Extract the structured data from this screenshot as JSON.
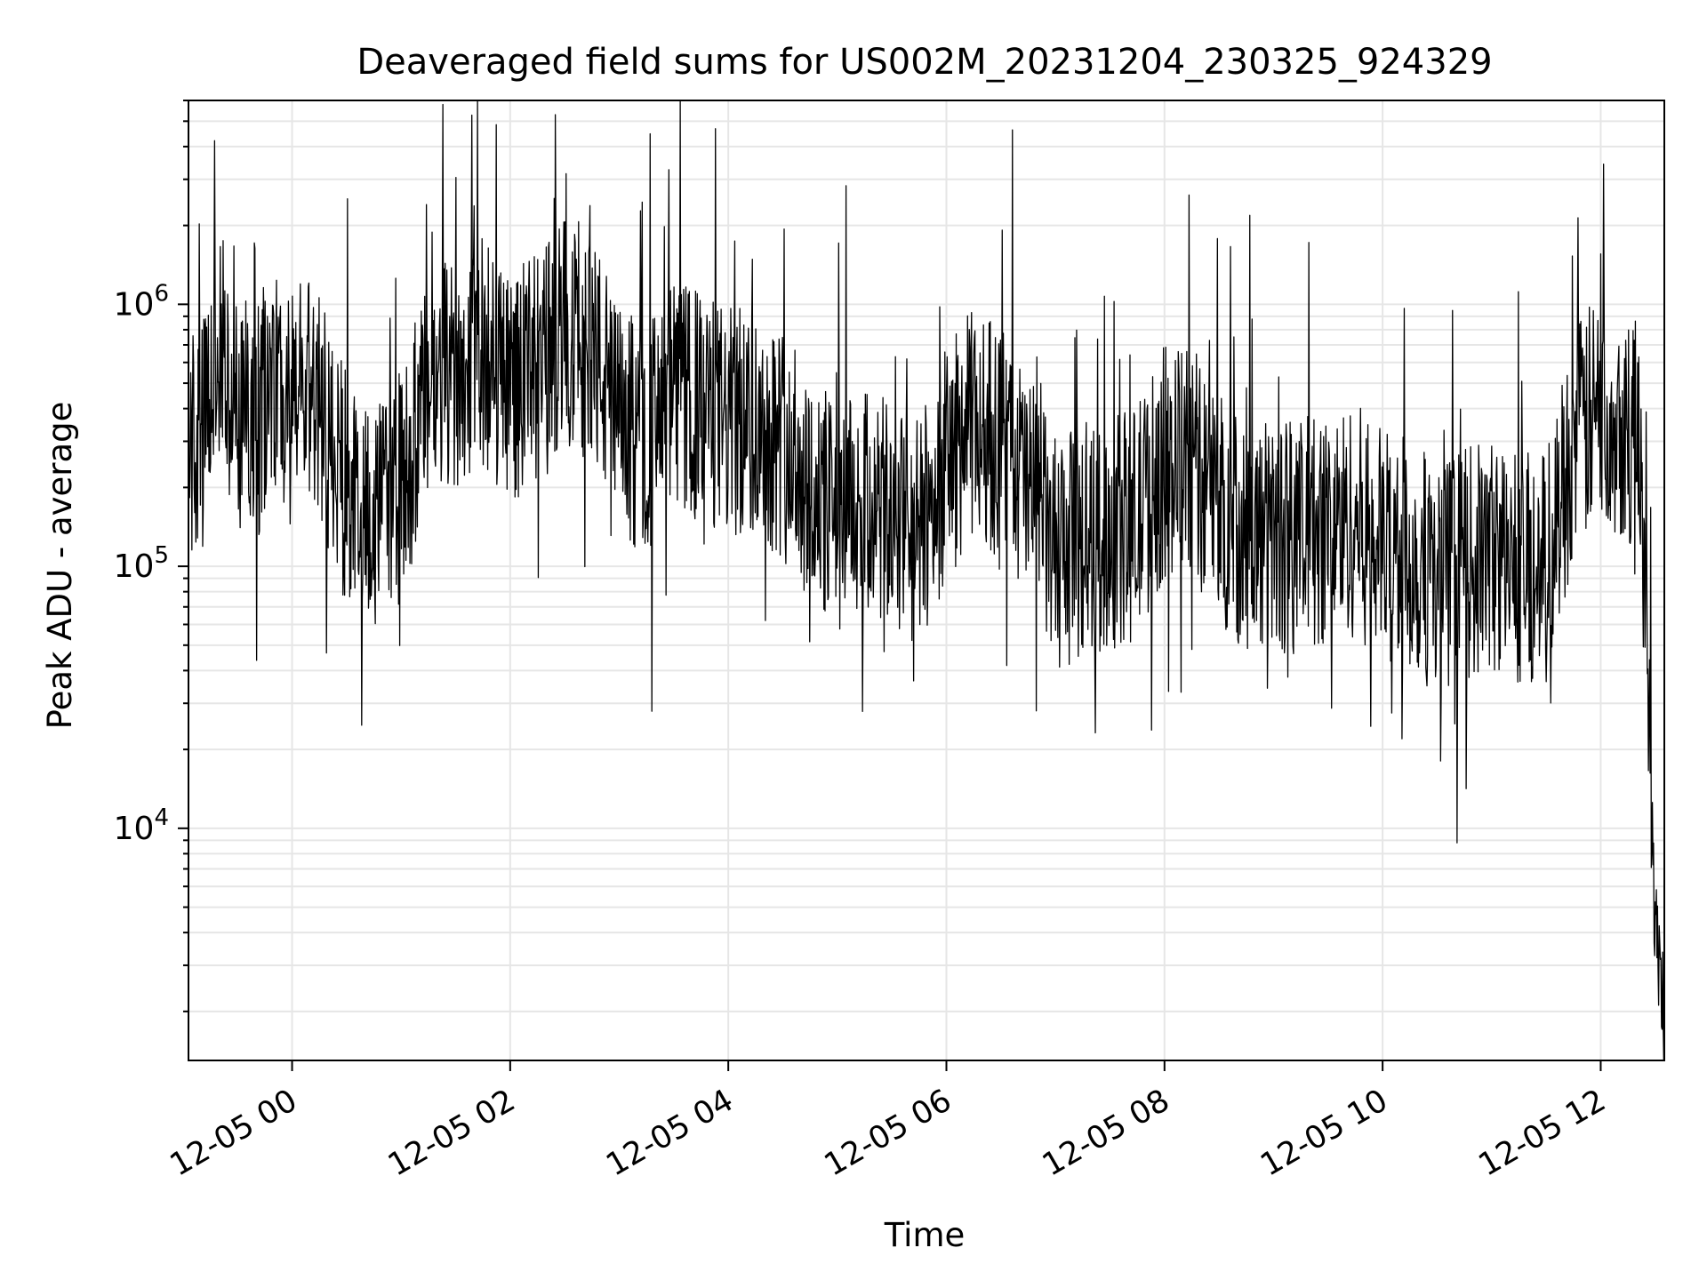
{
  "chart_data": {
    "type": "line",
    "title": "Deaveraged field sums for US002M_20231204_230325_924329",
    "xlabel": "Time",
    "ylabel": "Peak ADU - average",
    "yscale": "log",
    "grid": true,
    "line_color": "#000000",
    "grid_color": "#e6e6e6",
    "xlim": [
      "2023-12-04 23:03",
      "2023-12-05 12:35"
    ],
    "ylim": [
      1300,
      6000000
    ],
    "xticks": [
      {
        "value": "2023-12-05 00:00",
        "label": "12-05 00"
      },
      {
        "value": "2023-12-05 02:00",
        "label": "12-05 02"
      },
      {
        "value": "2023-12-05 04:00",
        "label": "12-05 04"
      },
      {
        "value": "2023-12-05 06:00",
        "label": "12-05 06"
      },
      {
        "value": "2023-12-05 08:00",
        "label": "12-05 08"
      },
      {
        "value": "2023-12-05 10:00",
        "label": "12-05 10"
      },
      {
        "value": "2023-12-05 12:00",
        "label": "12-05 12"
      }
    ],
    "yticks": [
      {
        "value": 10000,
        "base": "10",
        "exp": "4"
      },
      {
        "value": 100000,
        "base": "10",
        "exp": "5"
      },
      {
        "value": 1000000,
        "base": "10",
        "exp": "6"
      }
    ],
    "series": [
      {
        "x": [
          "2023-12-04 23:03",
          "2023-12-04 23:10",
          "2023-12-04 23:20",
          "2023-12-04 23:30",
          "2023-12-04 23:40",
          "2023-12-04 23:50",
          "2023-12-05 00:00",
          "2023-12-05 00:10",
          "2023-12-05 00:20",
          "2023-12-05 00:30",
          "2023-12-05 00:45",
          "2023-12-05 01:00",
          "2023-12-05 01:15",
          "2023-12-05 01:30",
          "2023-12-05 01:45",
          "2023-12-05 02:00",
          "2023-12-05 02:15",
          "2023-12-05 02:30",
          "2023-12-05 02:45",
          "2023-12-05 03:00",
          "2023-12-05 03:15",
          "2023-12-05 03:30",
          "2023-12-05 03:45",
          "2023-12-05 04:00",
          "2023-12-05 04:15",
          "2023-12-05 04:30",
          "2023-12-05 04:45",
          "2023-12-05 05:00",
          "2023-12-05 05:15",
          "2023-12-05 05:30",
          "2023-12-05 05:45",
          "2023-12-05 06:00",
          "2023-12-05 06:15",
          "2023-12-05 06:30",
          "2023-12-05 06:45",
          "2023-12-05 07:00",
          "2023-12-05 07:15",
          "2023-12-05 07:30",
          "2023-12-05 07:45",
          "2023-12-05 08:00",
          "2023-12-05 08:15",
          "2023-12-05 08:30",
          "2023-12-05 08:45",
          "2023-12-05 09:00",
          "2023-12-05 09:15",
          "2023-12-05 09:30",
          "2023-12-05 09:45",
          "2023-12-05 10:00",
          "2023-12-05 10:15",
          "2023-12-05 10:30",
          "2023-12-05 10:45",
          "2023-12-05 11:00",
          "2023-12-05 11:15",
          "2023-12-05 11:30",
          "2023-12-05 11:45",
          "2023-12-05 12:00",
          "2023-12-05 12:15",
          "2023-12-05 12:20",
          "2023-12-05 12:25",
          "2023-12-05 12:30",
          "2023-12-05 12:35"
        ],
        "y": [
          300000,
          280000,
          700000,
          400000,
          350000,
          450000,
          400000,
          500000,
          300000,
          200000,
          150000,
          200000,
          450000,
          550000,
          650000,
          500000,
          550000,
          800000,
          700000,
          350000,
          300000,
          450000,
          400000,
          350000,
          350000,
          300000,
          200000,
          150000,
          170000,
          150000,
          130000,
          250000,
          350000,
          300000,
          200000,
          110000,
          120000,
          130000,
          150000,
          250000,
          250000,
          170000,
          130000,
          130000,
          130000,
          140000,
          150000,
          120000,
          110000,
          90000,
          100000,
          110000,
          100000,
          100000,
          300000,
          400000,
          350000,
          300000,
          90000,
          4000,
          2000
        ]
      }
    ]
  }
}
